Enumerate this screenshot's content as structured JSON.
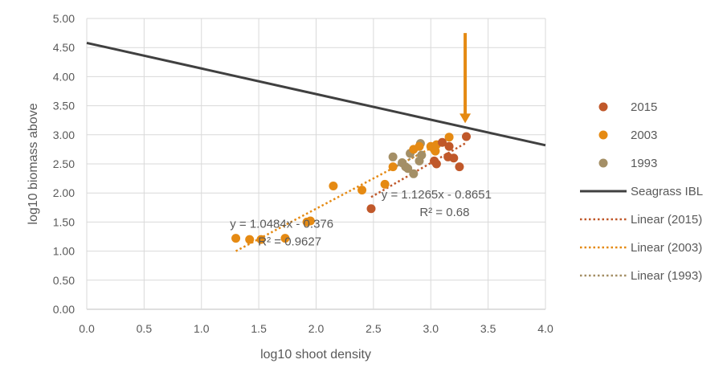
{
  "chart_data": {
    "type": "scatter",
    "xlabel": "log10 shoot density",
    "ylabel": "log10 biomass above",
    "xlim": [
      0,
      4
    ],
    "ylim": [
      0,
      5
    ],
    "x_ticks": [
      "0.0",
      "0.5",
      "1.0",
      "1.5",
      "2.0",
      "2.5",
      "3.0",
      "3.5",
      "4.0"
    ],
    "y_ticks": [
      "0.00",
      "0.50",
      "1.00",
      "1.50",
      "2.00",
      "2.50",
      "3.00",
      "3.50",
      "4.00",
      "4.50",
      "5.00"
    ],
    "grid": true,
    "legend_position": "right",
    "series": [
      {
        "name": "2015",
        "kind": "points",
        "color": "#c0582a",
        "points": [
          [
            2.48,
            1.73
          ],
          [
            3.03,
            2.55
          ],
          [
            3.05,
            2.5
          ],
          [
            3.1,
            2.87
          ],
          [
            3.15,
            2.62
          ],
          [
            3.16,
            2.8
          ],
          [
            3.2,
            2.6
          ],
          [
            3.25,
            2.45
          ],
          [
            3.31,
            2.97
          ]
        ]
      },
      {
        "name": "2003",
        "kind": "points",
        "color": "#e58a13",
        "points": [
          [
            1.3,
            1.22
          ],
          [
            1.42,
            1.2
          ],
          [
            1.52,
            1.2
          ],
          [
            1.73,
            1.22
          ],
          [
            1.92,
            1.5
          ],
          [
            1.95,
            1.52
          ],
          [
            2.15,
            2.12
          ],
          [
            2.4,
            2.05
          ],
          [
            2.6,
            2.15
          ],
          [
            2.67,
            2.45
          ],
          [
            2.85,
            2.75
          ],
          [
            2.9,
            2.8
          ],
          [
            3.0,
            2.8
          ],
          [
            3.03,
            2.75
          ],
          [
            3.05,
            2.83
          ],
          [
            3.16,
            2.96
          ],
          [
            3.04,
            2.72
          ]
        ]
      },
      {
        "name": "1993",
        "kind": "points",
        "color": "#a48f66",
        "points": [
          [
            2.67,
            2.62
          ],
          [
            2.75,
            2.52
          ],
          [
            2.78,
            2.45
          ],
          [
            2.8,
            2.42
          ],
          [
            2.82,
            2.68
          ],
          [
            2.85,
            2.33
          ],
          [
            2.9,
            2.55
          ],
          [
            2.91,
            2.85
          ],
          [
            2.92,
            2.65
          ]
        ]
      },
      {
        "name": "Seagrass IBL",
        "kind": "line",
        "color": "#404040",
        "x": [
          0,
          4
        ],
        "y": [
          4.58,
          2.82
        ]
      },
      {
        "name": "Linear (2015)",
        "kind": "trend",
        "color": "#c0582a",
        "x": [
          2.48,
          3.31
        ],
        "y": [
          1.929,
          2.864
        ]
      },
      {
        "name": "Linear (2003)",
        "kind": "trend",
        "color": "#e58a13",
        "x": [
          1.3,
          3.16
        ],
        "y": [
          1.0,
          2.937
        ]
      },
      {
        "name": "Linear (1993)",
        "kind": "trend",
        "color": "#a48f66",
        "x": [
          2.67,
          2.92
        ],
        "y": [
          2.43,
          2.69
        ]
      }
    ],
    "annotations": [
      {
        "id": "eq-2003",
        "lines": [
          "y = 1.0484x - 0.376",
          "R² = 0.9627"
        ],
        "at": [
          1.7,
          1.1
        ]
      },
      {
        "id": "eq-2015",
        "lines": [
          "y = 1.1265x - 0.8651",
          "R² = 0.68"
        ],
        "at": [
          3.05,
          1.6
        ]
      }
    ],
    "arrow": {
      "color": "#e58a13",
      "x": 3.3,
      "y_from": 4.75,
      "y_to": 3.2
    }
  }
}
